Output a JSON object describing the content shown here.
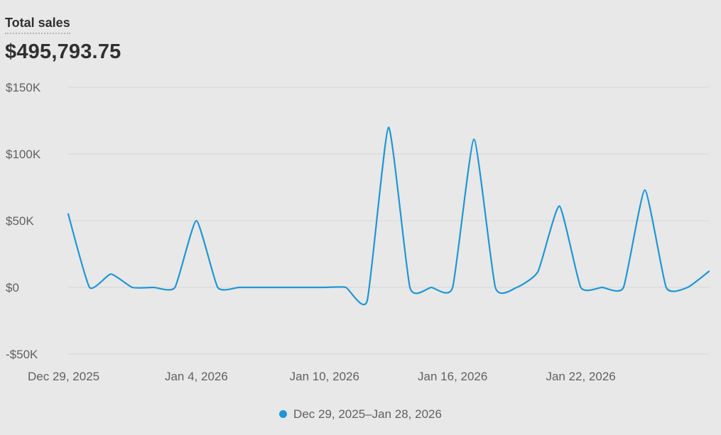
{
  "metric": {
    "title": "Total sales",
    "value": "$495,793.75"
  },
  "colors": {
    "series": "#1f97d4",
    "grid": "#d6d6d6",
    "text": "#303030",
    "muted": "#616161"
  },
  "legend": {
    "label": "Dec 29, 2025–Jan 28, 2026"
  },
  "chart_data": {
    "type": "line",
    "title": "",
    "xlabel": "",
    "ylabel": "",
    "ylim": [
      -50000,
      150000
    ],
    "y_ticks": [
      150000,
      100000,
      50000,
      0,
      -50000
    ],
    "y_tick_labels": [
      "$150K",
      "$100K",
      "$50K",
      "$0",
      "-$50K"
    ],
    "x_tick_labels": [
      "Dec 29, 2025",
      "Jan 4, 2026",
      "Jan 10, 2026",
      "Jan 16, 2026",
      "Jan 22, 2026"
    ],
    "x_tick_indices": [
      0,
      6,
      12,
      18,
      24
    ],
    "categories": [
      "2025-12-29",
      "2025-12-30",
      "2025-12-31",
      "2026-01-01",
      "2026-01-02",
      "2026-01-03",
      "2026-01-04",
      "2026-01-05",
      "2026-01-06",
      "2026-01-07",
      "2026-01-08",
      "2026-01-09",
      "2026-01-10",
      "2026-01-11",
      "2026-01-12",
      "2026-01-13",
      "2026-01-14",
      "2026-01-15",
      "2026-01-16",
      "2026-01-17",
      "2026-01-18",
      "2026-01-19",
      "2026-01-20",
      "2026-01-21",
      "2026-01-22",
      "2026-01-23",
      "2026-01-24",
      "2026-01-25",
      "2026-01-26",
      "2026-01-27",
      "2026-01-28"
    ],
    "grid": true,
    "legend_position": "bottom-center",
    "series": [
      {
        "name": "Dec 29, 2025–Jan 28, 2026",
        "values": [
          55000,
          0,
          10000,
          0,
          0,
          0,
          50000,
          0,
          0,
          0,
          0,
          0,
          0,
          0,
          -10000,
          120000,
          0,
          0,
          0,
          111000,
          0,
          0,
          12000,
          61000,
          0,
          0,
          0,
          73000,
          0,
          0,
          12000
        ]
      }
    ]
  }
}
